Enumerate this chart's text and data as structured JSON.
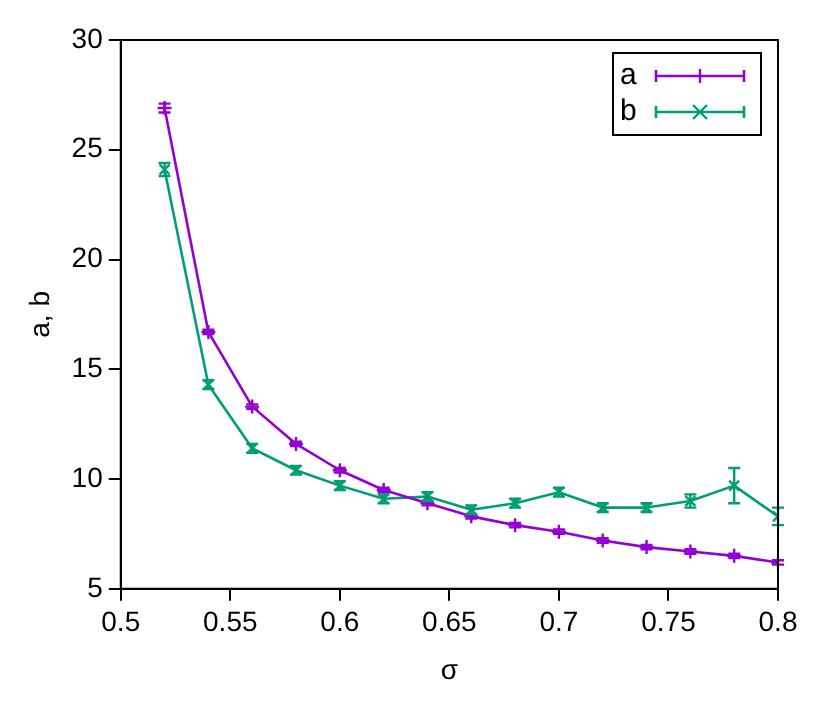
{
  "chart_data": {
    "type": "line",
    "xlabel": "σ",
    "ylabel": "a, b",
    "x": [
      0.52,
      0.54,
      0.56,
      0.58,
      0.6,
      0.62,
      0.64,
      0.66,
      0.68,
      0.7,
      0.72,
      0.74,
      0.76,
      0.78,
      0.8
    ],
    "series": [
      {
        "name": "a",
        "color": "#9400d3",
        "marker": "cross",
        "values": [
          26.9,
          16.7,
          13.3,
          11.6,
          10.4,
          9.5,
          8.9,
          8.3,
          7.9,
          7.6,
          7.2,
          6.9,
          6.7,
          6.5,
          6.2
        ],
        "errors": [
          0.2,
          0.1,
          0.1,
          0.1,
          0.1,
          0.1,
          0.1,
          0.1,
          0.1,
          0.1,
          0.1,
          0.1,
          0.1,
          0.1,
          0.1
        ]
      },
      {
        "name": "b",
        "color": "#009e73",
        "marker": "x",
        "values": [
          24.1,
          14.3,
          11.4,
          10.4,
          9.7,
          9.1,
          9.2,
          8.6,
          8.9,
          9.4,
          8.7,
          8.7,
          9.0,
          9.7,
          8.3
        ],
        "errors": [
          0.3,
          0.2,
          0.2,
          0.2,
          0.2,
          0.2,
          0.2,
          0.2,
          0.2,
          0.2,
          0.2,
          0.2,
          0.3,
          0.8,
          0.4
        ]
      }
    ],
    "xlim": [
      0.5,
      0.8
    ],
    "xticks": [
      0.5,
      0.55,
      0.6,
      0.65,
      0.7,
      0.75,
      0.8
    ],
    "ylim": [
      5,
      30
    ],
    "yticks": [
      5,
      10,
      15,
      20,
      25,
      30
    ],
    "grid": false,
    "legend": "top right",
    "line_style": "solid"
  }
}
